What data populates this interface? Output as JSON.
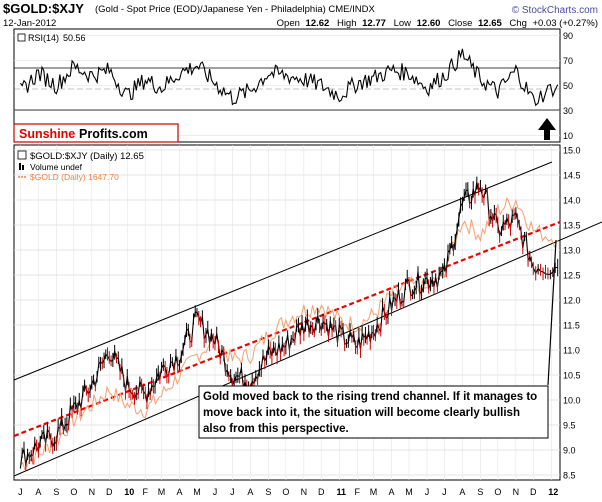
{
  "header": {
    "symbol": "$GOLD:$XJY",
    "description": "(Gold - Spot Price (EOD)/Japanese Yen - Philadelphia)  CME/INDX",
    "brand": "© StockCharts.com",
    "date": "12-Jan-2012",
    "ohlc": "Open 12.62  High 12.77  Low 12.60  Close 12.65  Chg +0.03 (+0.27%)",
    "ohlc_parts": [
      {
        "label": "Open",
        "value": "12.62"
      },
      {
        "label": "High",
        "value": "12.77"
      },
      {
        "label": "Low",
        "value": "12.60"
      },
      {
        "label": "Close",
        "value": "12.65"
      },
      {
        "label": "Chg",
        "value": "+0.03 (+0.27%)"
      }
    ]
  },
  "rsi_panel": {
    "label": "RSI(14) 50.56",
    "label_name": "RSI(14)",
    "label_value": "50.56",
    "ticks": [
      "90",
      "70",
      "50",
      "30",
      "10"
    ],
    "arrow": "up"
  },
  "logo": {
    "part1": "Sunshine",
    "part2": "Profits.com",
    "color1": "#e00000",
    "color2": "#000000"
  },
  "price_legend": [
    {
      "text": "$GOLD:$XJY (Daily) 12.65",
      "color": "#000000"
    },
    {
      "text": "Volume undef",
      "color": "#000000"
    },
    {
      "text": "$GOLD (Daily) 1647.70",
      "color": "#f08040"
    }
  ],
  "annotation": "Gold moved back to the rising trend channel. If it manages to move back into it, the situation will become clearly bullish also from this perspective.",
  "annotation_lines": [
    "Gold moved back to the rising trend channel. If it manages to",
    "move back into it, the situation will become clearly bullish",
    "also from this perspective."
  ],
  "colors": {
    "price": "#000000",
    "price_down": "#cc0000",
    "gold_overlay": "#f4a070",
    "trend_line": "#ff0000",
    "channel": "#000000",
    "rsi": "#000000",
    "grid": "#d0d0d0"
  },
  "chart_data": {
    "type": "line",
    "xlabel_ticks": [
      "J",
      "A",
      "S",
      "O",
      "N",
      "D",
      "10",
      "F",
      "M",
      "A",
      "M",
      "J",
      "J",
      "A",
      "S",
      "O",
      "N",
      "D",
      "11",
      "F",
      "M",
      "A",
      "M",
      "J",
      "J",
      "A",
      "S",
      "O",
      "N",
      "D",
      "12"
    ],
    "y_ticks": [
      "15.0",
      "14.5",
      "14.0",
      "13.5",
      "13.0",
      "12.5",
      "12.0",
      "11.5",
      "11.0",
      "10.5",
      "10.0",
      "9.5",
      "9.0",
      "8.5"
    ],
    "ylim": [
      8.4,
      15.1
    ],
    "series": [
      {
        "name": "$GOLD:$XJY (Daily)",
        "x": [
          "2009-07-01",
          "2009-08-01",
          "2009-09-01",
          "2009-10-01",
          "2009-11-01",
          "2009-12-01",
          "2010-01-01",
          "2010-02-01",
          "2010-03-01",
          "2010-04-01",
          "2010-05-01",
          "2010-06-01",
          "2010-07-01",
          "2010-08-01",
          "2010-09-01",
          "2010-10-01",
          "2010-11-01",
          "2010-12-01",
          "2011-01-01",
          "2011-02-01",
          "2011-03-01",
          "2011-04-01",
          "2011-05-01",
          "2011-06-01",
          "2011-07-01",
          "2011-08-01",
          "2011-09-01",
          "2011-10-01",
          "2011-11-01",
          "2011-12-01",
          "2012-01-12"
        ],
        "values": [
          8.8,
          9.1,
          9.3,
          9.8,
          10.3,
          11.0,
          10.3,
          10.1,
          10.6,
          10.9,
          11.6,
          11.2,
          10.5,
          10.4,
          10.9,
          11.1,
          11.5,
          11.6,
          11.3,
          11.1,
          11.4,
          11.9,
          12.3,
          12.4,
          12.5,
          13.9,
          14.3,
          13.4,
          13.6,
          12.7,
          12.65
        ]
      },
      {
        "name": "$GOLD (Daily)",
        "x": [
          "2009-07-01",
          "2009-08-01",
          "2009-09-01",
          "2009-10-01",
          "2009-11-01",
          "2009-12-01",
          "2010-01-01",
          "2010-02-01",
          "2010-03-01",
          "2010-04-01",
          "2010-05-01",
          "2010-06-01",
          "2010-07-01",
          "2010-08-01",
          "2010-09-01",
          "2010-10-01",
          "2010-11-01",
          "2010-12-01",
          "2011-01-01",
          "2011-02-01",
          "2011-03-01",
          "2011-04-01",
          "2011-05-01",
          "2011-06-01",
          "2011-07-01",
          "2011-08-01",
          "2011-09-01",
          "2011-10-01",
          "2011-11-01",
          "2011-12-01",
          "2012-01-12"
        ],
        "values": [
          8.7,
          8.9,
          9.2,
          9.6,
          9.9,
          10.2,
          9.9,
          9.8,
          10.1,
          10.5,
          10.9,
          11.2,
          10.8,
          10.9,
          11.3,
          11.6,
          11.8,
          11.9,
          11.6,
          11.5,
          11.7,
          12.1,
          12.3,
          12.2,
          12.6,
          13.6,
          13.3,
          13.8,
          14.0,
          13.4,
          13.2
        ]
      }
    ],
    "rsi": {
      "name": "RSI(14)",
      "ylim": [
        10,
        90
      ],
      "x": [
        "2009-07-01",
        "2009-08-01",
        "2009-09-01",
        "2009-10-01",
        "2009-11-01",
        "2009-12-01",
        "2010-01-01",
        "2010-02-01",
        "2010-03-01",
        "2010-04-01",
        "2010-05-01",
        "2010-06-01",
        "2010-07-01",
        "2010-08-01",
        "2010-09-01",
        "2010-10-01",
        "2010-11-01",
        "2010-12-01",
        "2011-01-01",
        "2011-02-01",
        "2011-03-01",
        "2011-04-01",
        "2011-05-01",
        "2011-06-01",
        "2011-07-01",
        "2011-08-01",
        "2011-09-01",
        "2011-10-01",
        "2011-11-01",
        "2011-12-01",
        "2012-01-12"
      ],
      "values": [
        45,
        60,
        50,
        65,
        58,
        62,
        42,
        55,
        48,
        60,
        66,
        52,
        40,
        46,
        60,
        58,
        55,
        50,
        42,
        52,
        56,
        62,
        60,
        48,
        58,
        75,
        55,
        45,
        62,
        38,
        50.56
      ]
    }
  }
}
